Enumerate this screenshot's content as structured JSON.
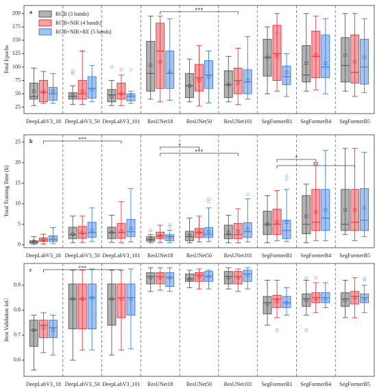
{
  "chart_data": [
    {
      "type": "box",
      "panel_label": "a",
      "y_label": "Total Epochs",
      "categories": [
        "DeepLabV3_18",
        "DeepLabV3_50",
        "DeepLabV3_101",
        "ResUNet18",
        "ResUNet50",
        "ResUNet101",
        "SegFormerB1",
        "SegFormerB4",
        "SegFormerB5"
      ],
      "ylim": [
        13,
        215
      ],
      "yticks": [
        25,
        50,
        75,
        100,
        125,
        150,
        175,
        200
      ],
      "legend": "upper left",
      "series": [
        {
          "name": "RGB (3 bands)",
          "color": "#555555",
          "min": [
            28,
            30,
            28,
            40,
            35,
            35,
            50,
            55,
            55
          ],
          "q1": [
            40,
            40,
            35,
            55,
            43,
            43,
            83,
            72,
            72
          ],
          "median": [
            45,
            45,
            48,
            88,
            65,
            67,
            118,
            85,
            103
          ],
          "q3": [
            70,
            52,
            58,
            148,
            88,
            93,
            152,
            140,
            155
          ],
          "max": [
            98,
            65,
            75,
            195,
            115,
            120,
            175,
            200,
            200
          ],
          "mean": [
            55,
            47,
            45,
            103,
            65,
            67,
            118,
            107,
            122
          ],
          "outliers": [
            [],
            [
              88,
              92
            ],
            [
              100
            ],
            [],
            [],
            [],
            [],
            [],
            []
          ]
        },
        {
          "name": "RGB+NIR (4 bands)",
          "color": "#e8313a",
          "min": [
            32,
            30,
            28,
            35,
            27,
            30,
            55,
            57,
            45
          ],
          "q1": [
            35,
            40,
            40,
            60,
            55,
            50,
            75,
            80,
            70
          ],
          "median": [
            53,
            50,
            50,
            130,
            80,
            75,
            125,
            120,
            90
          ],
          "q3": [
            75,
            75,
            70,
            182,
            105,
            98,
            178,
            167,
            160
          ],
          "max": [
            92,
            130,
            85,
            195,
            140,
            135,
            200,
            195,
            200
          ],
          "mean": [
            54,
            55,
            50,
            110,
            75,
            70,
            120,
            122,
            110
          ],
          "outliers": [
            [],
            [],
            [
              95
            ],
            [],
            [],
            [],
            [
              163
            ],
            [],
            []
          ]
        },
        {
          "name": "RGB+NIR+RE (5 bands)",
          "color": "#3a7ad8",
          "min": [
            32,
            35,
            32,
            38,
            33,
            40,
            45,
            50,
            52
          ],
          "q1": [
            38,
            42,
            37,
            60,
            60,
            50,
            67,
            80,
            68
          ],
          "median": [
            50,
            60,
            45,
            88,
            85,
            72,
            82,
            100,
            100
          ],
          "q3": [
            62,
            82,
            50,
            130,
            112,
            95,
            102,
            160,
            152
          ],
          "max": [
            88,
            103,
            55,
            190,
            130,
            157,
            125,
            190,
            190
          ],
          "mean": [
            55,
            58,
            48,
            92,
            82,
            75,
            90,
            107,
            118
          ],
          "outliers": [
            [],
            [],
            [
              95
            ],
            [],
            [],
            [],
            [],
            [],
            []
          ]
        }
      ],
      "brackets": [
        {
          "from": "ResUNet18",
          "to": "ResUNet101",
          "label": "***"
        }
      ]
    },
    {
      "type": "box",
      "panel_label": "b",
      "y_label": "Total Training Time (h)",
      "categories": [
        "DeepLabV3_18",
        "DeepLabV3_50",
        "DeepLabV3_101",
        "ResUNet18",
        "ResUNet50",
        "ResUNet101",
        "SegFormerB1",
        "SegFormerB4",
        "SegFormerB5"
      ],
      "ylim": [
        -0.7,
        26.8
      ],
      "yticks": [
        0,
        5,
        10,
        15,
        20,
        25
      ],
      "series": [
        {
          "name": "RGB (3 bands)",
          "color": "#555555",
          "min": [
            0.1,
            0.5,
            0.6,
            0.5,
            0.5,
            0.5,
            0.5,
            0.5,
            2.5
          ],
          "q1": [
            0.4,
            1.5,
            1.5,
            0.9,
            1.0,
            1.5,
            2.5,
            2.7,
            3.5
          ],
          "median": [
            0.7,
            2.5,
            3.0,
            1.3,
            2.0,
            2.5,
            5.0,
            5.0,
            5.0
          ],
          "q3": [
            1.0,
            4.3,
            4.3,
            2.0,
            3.3,
            4.8,
            8.2,
            12.0,
            13.5
          ],
          "max": [
            2.0,
            7.0,
            7.2,
            2.5,
            6.5,
            7.2,
            12.0,
            14.8,
            23.5
          ],
          "mean": [
            0.8,
            2.6,
            3.0,
            1.5,
            2.3,
            3.0,
            5.0,
            7.0,
            8.5
          ],
          "outliers": [
            [],
            [],
            [],
            [
              3.5
            ],
            [],
            [],
            [],
            [],
            []
          ]
        },
        {
          "name": "RGB+NIR (4 bands)",
          "color": "#e8313a",
          "min": [
            0.2,
            0.6,
            0.5,
            0.6,
            0.7,
            0.5,
            1.0,
            1.0,
            1.0
          ],
          "q1": [
            0.8,
            1.6,
            1.6,
            1.5,
            1.8,
            1.5,
            2.5,
            3.5,
            3.5
          ],
          "median": [
            1.2,
            2.8,
            3.0,
            2.2,
            3.0,
            2.5,
            5.0,
            5.5,
            5.5
          ],
          "q3": [
            1.7,
            4.5,
            5.2,
            3.1,
            4.0,
            5.2,
            8.7,
            13.5,
            13.5
          ],
          "max": [
            2.6,
            7.0,
            10.5,
            4.8,
            7.0,
            8.8,
            13.2,
            19.5,
            23.5
          ],
          "mean": [
            1.3,
            3.0,
            3.3,
            2.2,
            3.0,
            3.3,
            5.5,
            8.0,
            8.5
          ],
          "outliers": [
            [],
            [],
            [],
            [],
            [],
            [],
            [],
            [],
            []
          ]
        },
        {
          "name": "RGB+NIR+RE (5 bands)",
          "color": "#3a7ad8",
          "min": [
            0.3,
            0.8,
            0.7,
            0.5,
            0.8,
            0.7,
            0.8,
            1.0,
            2.0
          ],
          "q1": [
            0.8,
            1.8,
            2.0,
            1.0,
            1.8,
            1.8,
            1.5,
            3.5,
            3.5
          ],
          "median": [
            1.3,
            3.0,
            3.2,
            2.0,
            2.5,
            3.2,
            3.5,
            6.5,
            6.0
          ],
          "q3": [
            2.2,
            5.5,
            6.2,
            2.5,
            4.2,
            5.4,
            6.0,
            13.5,
            13.7
          ],
          "max": [
            4.2,
            9.0,
            13.7,
            3.6,
            9.0,
            11.2,
            13.5,
            23.0,
            22.5
          ],
          "mean": [
            1.6,
            3.5,
            4.0,
            1.8,
            3.2,
            3.8,
            5.5,
            8.5,
            9.0
          ],
          "outliers": [
            [],
            [],
            [],
            [
              4.5,
              5.0
            ],
            [
              10.5,
              11.2
            ],
            [
              12.3
            ],
            [
              16,
              16.8
            ],
            [],
            []
          ]
        }
      ],
      "brackets": [
        {
          "from": "DeepLabV3_18",
          "to": "DeepLabV3_101",
          "label": "***"
        },
        {
          "from": "ResUNet18",
          "to": "ResUNet50",
          "label": "*"
        },
        {
          "from": "ResUNet18",
          "to": "ResUNet101",
          "label": "***"
        },
        {
          "from": "SegFormerB1",
          "to": "SegFormerB4",
          "label": "*"
        },
        {
          "from": "SegFormerB1",
          "to": "SegFormerB5",
          "label": "**"
        }
      ]
    },
    {
      "type": "box",
      "panel_label": "c",
      "y_label": "Best Validation IoU",
      "categories": [
        "DeepLabV3_18",
        "DeepLabV3_50",
        "DeepLabV3_101",
        "ResUNet18",
        "ResUNet50",
        "ResUNet101",
        "SegFormerB1",
        "SegFormerB4",
        "SegFormerB5"
      ],
      "ylim": [
        0.535,
        0.987
      ],
      "yticks": [
        0.6,
        0.7,
        0.8,
        0.9
      ],
      "series": [
        {
          "name": "RGB (3 bands)",
          "color": "#555555",
          "min": [
            0.56,
            0.6,
            0.62,
            0.875,
            0.89,
            0.885,
            0.74,
            0.78,
            0.77
          ],
          "q1": [
            0.655,
            0.725,
            0.74,
            0.905,
            0.915,
            0.905,
            0.785,
            0.815,
            0.815
          ],
          "median": [
            0.72,
            0.845,
            0.845,
            0.935,
            0.925,
            0.935,
            0.83,
            0.845,
            0.845
          ],
          "q3": [
            0.76,
            0.905,
            0.905,
            0.95,
            0.945,
            0.955,
            0.855,
            0.865,
            0.87
          ],
          "max": [
            0.78,
            0.96,
            0.96,
            0.97,
            0.96,
            0.97,
            0.92,
            0.92,
            0.92
          ],
          "mean": [
            0.72,
            0.845,
            0.845,
            0.93,
            0.925,
            0.93,
            0.825,
            0.84,
            0.84
          ],
          "outliers": [
            [],
            [],
            [],
            [],
            [],
            [],
            [],
            [
              0.72,
              0.93
            ],
            []
          ]
        },
        {
          "name": "RGB+NIR (4 bands)",
          "color": "#e8313a",
          "min": [
            0.63,
            0.64,
            0.64,
            0.88,
            0.885,
            0.875,
            0.77,
            0.79,
            0.77
          ],
          "q1": [
            0.69,
            0.725,
            0.77,
            0.905,
            0.915,
            0.905,
            0.81,
            0.83,
            0.825
          ],
          "median": [
            0.74,
            0.845,
            0.85,
            0.935,
            0.94,
            0.935,
            0.845,
            0.85,
            0.855
          ],
          "q3": [
            0.76,
            0.905,
            0.905,
            0.95,
            0.95,
            0.955,
            0.86,
            0.87,
            0.875
          ],
          "max": [
            0.79,
            0.96,
            0.96,
            0.97,
            0.965,
            0.965,
            0.92,
            0.91,
            0.93
          ],
          "mean": [
            0.73,
            0.845,
            0.845,
            0.93,
            0.935,
            0.93,
            0.835,
            0.845,
            0.85
          ],
          "outliers": [
            [],
            [],
            [],
            [],
            [],
            [],
            [
              0.72
            ],
            [
              0.93
            ],
            []
          ]
        },
        {
          "name": "RGB+NIR+RE (5 bands)",
          "color": "#3a7ad8",
          "min": [
            0.62,
            0.64,
            0.645,
            0.875,
            0.885,
            0.885,
            0.78,
            0.81,
            0.79
          ],
          "q1": [
            0.69,
            0.725,
            0.78,
            0.895,
            0.915,
            0.915,
            0.81,
            0.83,
            0.83
          ],
          "median": [
            0.73,
            0.85,
            0.85,
            0.93,
            0.935,
            0.945,
            0.83,
            0.85,
            0.85
          ],
          "q3": [
            0.76,
            0.905,
            0.905,
            0.95,
            0.955,
            0.96,
            0.855,
            0.87,
            0.865
          ],
          "max": [
            0.78,
            0.965,
            0.965,
            0.97,
            0.96,
            0.97,
            0.89,
            0.91,
            0.9
          ],
          "mean": [
            0.72,
            0.85,
            0.845,
            0.93,
            0.935,
            0.94,
            0.83,
            0.845,
            0.845
          ],
          "outliers": [
            [],
            [],
            [],
            [],
            [],
            [],
            [],
            [],
            [
              0.92,
              0.925
            ]
          ]
        }
      ],
      "brackets": [
        {
          "from": "DeepLabV3_18",
          "to": "DeepLabV3_101",
          "label": "***"
        }
      ]
    }
  ]
}
